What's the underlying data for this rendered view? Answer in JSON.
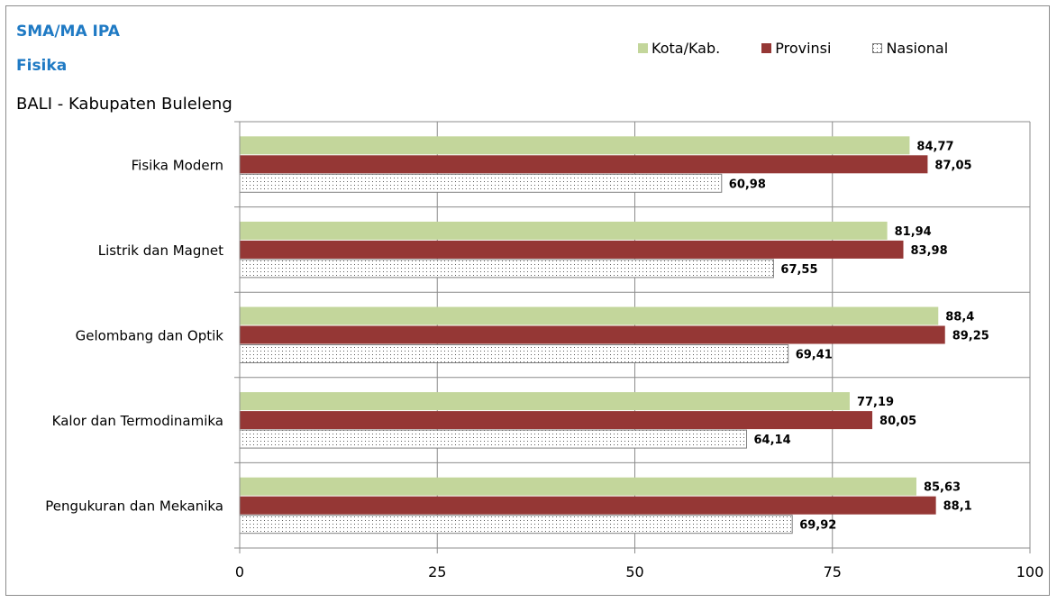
{
  "header": {
    "level": "SMA/MA IPA",
    "subject": "Fisika",
    "region": "BALI - Kabupaten Buleleng"
  },
  "colors": {
    "kota": "#c3d69b",
    "provinsi": "#953735",
    "nasional_border": "#7f7f7f",
    "title_blue": "#1f7ac4"
  },
  "chart_data": {
    "type": "bar",
    "orientation": "horizontal",
    "categories": [
      "Fisika Modern",
      "Listrik dan Magnet",
      "Gelombang dan Optik",
      "Kalor dan Termodinamika",
      "Pengukuran dan Mekanika"
    ],
    "series": [
      {
        "name": "Kota/Kab.",
        "values": [
          84.77,
          81.94,
          88.4,
          77.19,
          85.63
        ],
        "labels": [
          "84,77",
          "81,94",
          "88,4",
          "77,19",
          "85,63"
        ]
      },
      {
        "name": "Provinsi",
        "values": [
          87.05,
          83.98,
          89.25,
          80.05,
          88.1
        ],
        "labels": [
          "87,05",
          "83,98",
          "89,25",
          "80,05",
          "88,1"
        ]
      },
      {
        "name": "Nasional",
        "values": [
          60.98,
          67.55,
          69.41,
          64.14,
          69.92
        ],
        "labels": [
          "60,98",
          "67,55",
          "69,41",
          "64,14",
          "69,92"
        ]
      }
    ],
    "xlim": [
      0,
      100
    ],
    "xticks": [
      0,
      25,
      50,
      75,
      100
    ],
    "xtick_labels": [
      "0",
      "25",
      "50",
      "75",
      "100"
    ],
    "grid": true,
    "legend": "top-right"
  }
}
